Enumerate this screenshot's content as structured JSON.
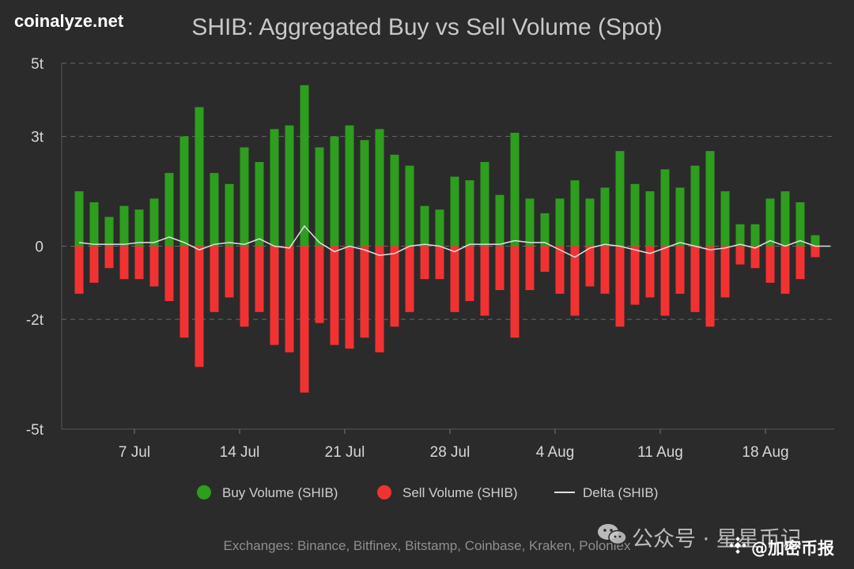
{
  "brand": "coinalyze.net",
  "watermark": {
    "icon": "wechat-icon",
    "text": "公众号 · 星星币记",
    "badge_icon": "binance-diamond-icon",
    "badge_text": "@加密币报"
  },
  "chart_data": {
    "type": "bar",
    "title": "SHIB: Aggregated Buy vs Sell Volume (Spot)",
    "y_unit": "t",
    "y_ticks": [
      5,
      3,
      0,
      -2,
      -5
    ],
    "y_tick_labels": [
      "5t",
      "3t",
      "0",
      "-2t",
      "-5t"
    ],
    "ylim": [
      -5,
      5
    ],
    "x_tick_labels": [
      "7 Jul",
      "14 Jul",
      "21 Jul",
      "28 Jul",
      "4 Aug",
      "11 Aug",
      "18 Aug"
    ],
    "x_tick_dates": [
      "2024-07-07",
      "2024-07-14",
      "2024-07-21",
      "2024-07-28",
      "2024-08-04",
      "2024-08-11",
      "2024-08-18"
    ],
    "x": [
      "2024-07-03",
      "2024-07-04",
      "2024-07-05",
      "2024-07-06",
      "2024-07-07",
      "2024-07-08",
      "2024-07-09",
      "2024-07-10",
      "2024-07-11",
      "2024-07-12",
      "2024-07-13",
      "2024-07-14",
      "2024-07-15",
      "2024-07-16",
      "2024-07-17",
      "2024-07-18",
      "2024-07-19",
      "2024-07-20",
      "2024-07-21",
      "2024-07-22",
      "2024-07-23",
      "2024-07-24",
      "2024-07-25",
      "2024-07-26",
      "2024-07-27",
      "2024-07-28",
      "2024-07-29",
      "2024-07-30",
      "2024-07-31",
      "2024-08-01",
      "2024-08-02",
      "2024-08-03",
      "2024-08-04",
      "2024-08-05",
      "2024-08-06",
      "2024-08-07",
      "2024-08-08",
      "2024-08-09",
      "2024-08-10",
      "2024-08-11",
      "2024-08-12",
      "2024-08-13",
      "2024-08-14",
      "2024-08-15",
      "2024-08-16",
      "2024-08-17",
      "2024-08-18",
      "2024-08-19",
      "2024-08-20",
      "2024-08-21",
      "2024-08-22"
    ],
    "series": [
      {
        "name": "Buy Volume (SHIB)",
        "color": "#2d9e1e",
        "values": [
          1.5,
          1.2,
          0.8,
          1.1,
          1.0,
          1.3,
          2.0,
          3.0,
          3.8,
          2.0,
          1.7,
          2.7,
          2.3,
          3.2,
          3.3,
          4.4,
          2.7,
          3.0,
          3.3,
          2.9,
          3.2,
          2.5,
          2.2,
          1.1,
          1.0,
          1.9,
          1.8,
          2.3,
          1.4,
          3.1,
          1.3,
          0.9,
          1.3,
          1.8,
          1.3,
          1.6,
          2.6,
          1.7,
          1.5,
          2.1,
          1.6,
          2.2,
          2.6,
          1.5,
          0.6,
          0.6,
          1.3,
          1.5,
          1.2,
          0.3,
          0.0
        ]
      },
      {
        "name": "Sell Volume (SHIB)",
        "color": "#f23232",
        "values": [
          -1.3,
          -1.0,
          -0.6,
          -0.9,
          -0.9,
          -1.1,
          -1.5,
          -2.5,
          -3.3,
          -1.8,
          -1.4,
          -2.2,
          -1.8,
          -2.7,
          -2.9,
          -4.0,
          -2.1,
          -2.7,
          -2.8,
          -2.5,
          -2.9,
          -2.2,
          -1.8,
          -0.9,
          -0.9,
          -1.8,
          -1.5,
          -1.9,
          -1.2,
          -2.5,
          -1.2,
          -0.7,
          -1.3,
          -1.9,
          -1.1,
          -1.3,
          -2.2,
          -1.6,
          -1.4,
          -1.9,
          -1.3,
          -1.8,
          -2.2,
          -1.4,
          -0.5,
          -0.6,
          -1.0,
          -1.3,
          -0.9,
          -0.3,
          0.0
        ]
      },
      {
        "name": "Delta (SHIB)",
        "color": "#e0e0e0",
        "type": "line",
        "values": [
          0.1,
          0.05,
          0.05,
          0.05,
          0.1,
          0.1,
          0.25,
          0.1,
          -0.1,
          0.05,
          0.1,
          0.05,
          0.2,
          0.0,
          -0.05,
          0.55,
          0.1,
          -0.15,
          0.0,
          -0.1,
          -0.25,
          -0.2,
          0.0,
          0.05,
          0.0,
          -0.15,
          0.05,
          0.05,
          0.05,
          0.15,
          0.1,
          0.1,
          -0.1,
          -0.3,
          -0.05,
          0.05,
          0.0,
          -0.1,
          -0.2,
          -0.05,
          0.1,
          0.0,
          -0.1,
          -0.05,
          0.05,
          -0.05,
          0.15,
          0.0,
          0.15,
          0.0,
          0.0
        ]
      }
    ],
    "legend_position": "bottom-center",
    "grid": "horizontal-dashed",
    "footnote": "Exchanges: Binance, Bitfinex, Bitstamp, Coinbase, Kraken, Poloniex"
  }
}
